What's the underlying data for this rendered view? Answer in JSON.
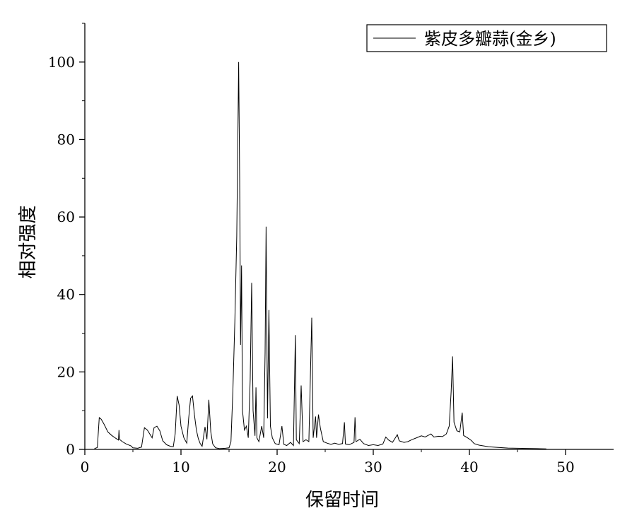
{
  "chart_data": {
    "type": "line",
    "title": "",
    "xlabel": "保留时间",
    "ylabel": "相对强度",
    "xlim": [
      0,
      55
    ],
    "ylim": [
      0,
      110
    ],
    "x_ticks": [
      0,
      10,
      20,
      30,
      40,
      50
    ],
    "y_ticks": [
      0,
      20,
      40,
      60,
      80,
      100
    ],
    "grid": false,
    "legend_position": "top-right",
    "series": [
      {
        "name": "紫皮多瓣蒜(金乡)",
        "color": "#000000",
        "points": [
          [
            1.0,
            0.2
          ],
          [
            1.3,
            0.5
          ],
          [
            1.5,
            8.2
          ],
          [
            1.7,
            7.8
          ],
          [
            2.0,
            6.5
          ],
          [
            2.4,
            4.5
          ],
          [
            2.8,
            3.6
          ],
          [
            3.2,
            2.9
          ],
          [
            3.5,
            2.4
          ],
          [
            3.55,
            5.0
          ],
          [
            3.6,
            2.6
          ],
          [
            3.9,
            2.0
          ],
          [
            4.3,
            1.4
          ],
          [
            4.8,
            0.9
          ],
          [
            5.0,
            0.4
          ],
          [
            5.5,
            0.3
          ],
          [
            5.9,
            0.6
          ],
          [
            6.2,
            5.6
          ],
          [
            6.5,
            5.0
          ],
          [
            6.8,
            3.8
          ],
          [
            7.0,
            3.0
          ],
          [
            7.2,
            5.6
          ],
          [
            7.5,
            6.0
          ],
          [
            7.8,
            4.8
          ],
          [
            8.1,
            2.2
          ],
          [
            8.5,
            1.2
          ],
          [
            8.9,
            0.8
          ],
          [
            9.2,
            0.7
          ],
          [
            9.4,
            4.0
          ],
          [
            9.6,
            13.8
          ],
          [
            9.8,
            11.5
          ],
          [
            10.0,
            6.0
          ],
          [
            10.3,
            3.0
          ],
          [
            10.6,
            1.6
          ],
          [
            10.8,
            8.0
          ],
          [
            11.0,
            13.2
          ],
          [
            11.2,
            13.8
          ],
          [
            11.4,
            9.0
          ],
          [
            11.6,
            5.0
          ],
          [
            11.8,
            2.8
          ],
          [
            12.0,
            1.5
          ],
          [
            12.2,
            0.8
          ],
          [
            12.5,
            5.8
          ],
          [
            12.7,
            2.6
          ],
          [
            12.9,
            12.8
          ],
          [
            13.1,
            4.5
          ],
          [
            13.3,
            1.4
          ],
          [
            13.6,
            0.4
          ],
          [
            14.0,
            0.2
          ],
          [
            14.6,
            0.3
          ],
          [
            15.0,
            0.4
          ],
          [
            15.2,
            2.0
          ],
          [
            15.4,
            15.0
          ],
          [
            15.6,
            33.0
          ],
          [
            15.8,
            55.0
          ],
          [
            16.0,
            100.0
          ],
          [
            16.1,
            70.0
          ],
          [
            16.2,
            27.0
          ],
          [
            16.3,
            47.5
          ],
          [
            16.4,
            10.0
          ],
          [
            16.6,
            5.0
          ],
          [
            16.8,
            6.0
          ],
          [
            17.0,
            3.0
          ],
          [
            17.2,
            18.0
          ],
          [
            17.35,
            43.0
          ],
          [
            17.5,
            10.0
          ],
          [
            17.7,
            3.5
          ],
          [
            17.8,
            16.0
          ],
          [
            17.9,
            3.0
          ],
          [
            18.1,
            2.0
          ],
          [
            18.4,
            6.0
          ],
          [
            18.6,
            3.0
          ],
          [
            18.75,
            25.0
          ],
          [
            18.85,
            57.5
          ],
          [
            19.0,
            8.0
          ],
          [
            19.15,
            36.0
          ],
          [
            19.3,
            6.0
          ],
          [
            19.5,
            3.0
          ],
          [
            19.8,
            1.5
          ],
          [
            20.2,
            1.2
          ],
          [
            20.5,
            6.0
          ],
          [
            20.7,
            1.3
          ],
          [
            21.0,
            1.0
          ],
          [
            21.4,
            1.8
          ],
          [
            21.7,
            1.0
          ],
          [
            21.9,
            29.5
          ],
          [
            22.0,
            2.5
          ],
          [
            22.3,
            1.5
          ],
          [
            22.5,
            16.5
          ],
          [
            22.7,
            2.0
          ],
          [
            23.0,
            2.5
          ],
          [
            23.3,
            2.0
          ],
          [
            23.6,
            34.0
          ],
          [
            23.75,
            3.0
          ],
          [
            24.0,
            8.5
          ],
          [
            24.1,
            3.0
          ],
          [
            24.3,
            9.0
          ],
          [
            24.5,
            5.5
          ],
          [
            24.8,
            2.0
          ],
          [
            25.2,
            1.6
          ],
          [
            25.6,
            1.3
          ],
          [
            26.0,
            1.6
          ],
          [
            26.4,
            1.3
          ],
          [
            26.8,
            1.5
          ],
          [
            27.0,
            7.0
          ],
          [
            27.1,
            1.4
          ],
          [
            27.5,
            1.2
          ],
          [
            28.0,
            1.8
          ],
          [
            28.1,
            8.3
          ],
          [
            28.2,
            2.0
          ],
          [
            28.6,
            2.6
          ],
          [
            29.0,
            1.5
          ],
          [
            29.5,
            1.0
          ],
          [
            30.0,
            1.2
          ],
          [
            30.5,
            1.0
          ],
          [
            31.0,
            1.4
          ],
          [
            31.3,
            3.2
          ],
          [
            31.6,
            2.4
          ],
          [
            32.0,
            1.8
          ],
          [
            32.5,
            3.8
          ],
          [
            32.7,
            2.2
          ],
          [
            33.2,
            1.8
          ],
          [
            33.6,
            2.0
          ],
          [
            34.0,
            2.5
          ],
          [
            34.5,
            3.0
          ],
          [
            35.0,
            3.5
          ],
          [
            35.4,
            3.2
          ],
          [
            36.0,
            4.0
          ],
          [
            36.3,
            3.2
          ],
          [
            36.8,
            3.4
          ],
          [
            37.2,
            3.3
          ],
          [
            37.6,
            4.0
          ],
          [
            37.9,
            6.0
          ],
          [
            38.1,
            15.0
          ],
          [
            38.25,
            24.0
          ],
          [
            38.4,
            7.0
          ],
          [
            38.7,
            4.8
          ],
          [
            39.0,
            4.5
          ],
          [
            39.25,
            9.5
          ],
          [
            39.4,
            3.6
          ],
          [
            39.8,
            3.0
          ],
          [
            40.2,
            2.3
          ],
          [
            40.5,
            1.5
          ],
          [
            41.0,
            1.1
          ],
          [
            41.5,
            0.9
          ],
          [
            42.0,
            0.7
          ],
          [
            43.0,
            0.5
          ],
          [
            44.0,
            0.35
          ],
          [
            45.0,
            0.3
          ],
          [
            46.0,
            0.25
          ],
          [
            47.0,
            0.2
          ],
          [
            48.0,
            0.15
          ]
        ]
      }
    ]
  }
}
